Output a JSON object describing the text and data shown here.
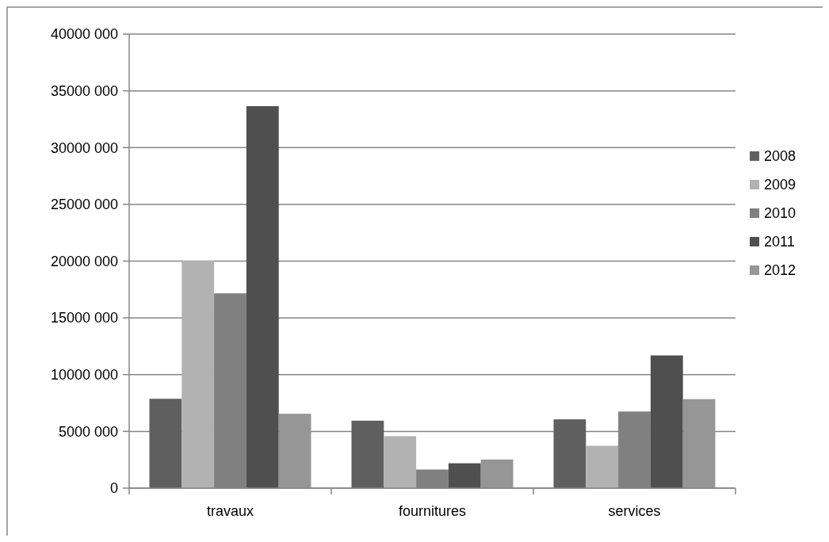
{
  "chart_data": {
    "type": "bar",
    "categories": [
      "travaux",
      "fournitures",
      "services"
    ],
    "series": [
      {
        "name": "2008",
        "color": "#5f5f5f",
        "values": [
          7870000,
          5940000,
          6060000
        ]
      },
      {
        "name": "2009",
        "color": "#b2b2b2",
        "values": [
          20040000,
          4580000,
          3730000
        ]
      },
      {
        "name": "2010",
        "color": "#808080",
        "values": [
          17160000,
          1640000,
          6750000
        ]
      },
      {
        "name": "2011",
        "color": "#4f4f4f",
        "values": [
          33650000,
          2190000,
          11690000
        ]
      },
      {
        "name": "2012",
        "color": "#969696",
        "values": [
          6550000,
          2520000,
          7840000
        ]
      }
    ],
    "ylim": [
      0,
      40000000
    ],
    "yticks": [
      0,
      {
        "value": 5000000,
        "label": "5000 000"
      },
      {
        "value": 10000000,
        "label": "10000 000"
      },
      {
        "value": 15000000,
        "label": "15000 000"
      },
      {
        "value": 20000000,
        "label": "20000 000"
      },
      {
        "value": 25000000,
        "label": "25000 000"
      },
      {
        "value": 30000000,
        "label": "30000 000"
      },
      {
        "value": 35000000,
        "label": "35000 000"
      },
      {
        "value": 40000000,
        "label": "40000 000"
      }
    ],
    "grid": "y",
    "legend": "right"
  }
}
